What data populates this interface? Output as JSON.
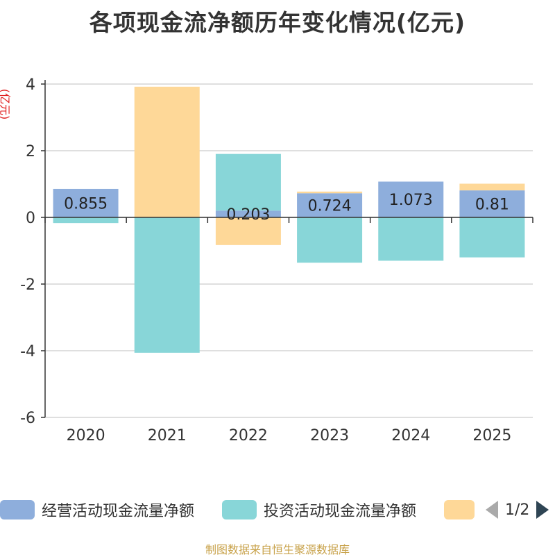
{
  "chart_data": {
    "type": "bar",
    "stacked": true,
    "title": "各项现金流净额历年变化情况(亿元)",
    "ylabel": "(亿元)",
    "ylim": [
      -6,
      4
    ],
    "yticks": [
      4,
      2,
      0,
      -2,
      -4,
      -6
    ],
    "categories": [
      "2020",
      "2021",
      "2022",
      "2023",
      "2024",
      "2025"
    ],
    "series": [
      {
        "name": "经营活动现金流量净额",
        "color": "#8eaedc",
        "values": [
          0.855,
          -0.01,
          0.203,
          0.724,
          1.073,
          0.81
        ],
        "labels": [
          "0.855",
          "",
          "0.203",
          "0.724",
          "1.073",
          "0.81"
        ]
      },
      {
        "name": "投资活动现金流量净额",
        "color": "#88d6d8",
        "values": [
          -0.17,
          -4.05,
          1.7,
          -1.36,
          -1.3,
          -1.2
        ]
      },
      {
        "name": "",
        "color": "#fed898",
        "values": [
          0.0,
          3.92,
          -0.83,
          0.05,
          0.0,
          0.2
        ]
      }
    ]
  },
  "legend": {
    "items": [
      {
        "label": "经营活动现金流量净额",
        "color": "#8eaedc"
      },
      {
        "label": "投资活动现金流量净额",
        "color": "#88d6d8"
      },
      {
        "label": "",
        "color": "#fed898"
      }
    ],
    "pager": "1/2"
  },
  "source": "制图数据来自恒生聚源数据库"
}
